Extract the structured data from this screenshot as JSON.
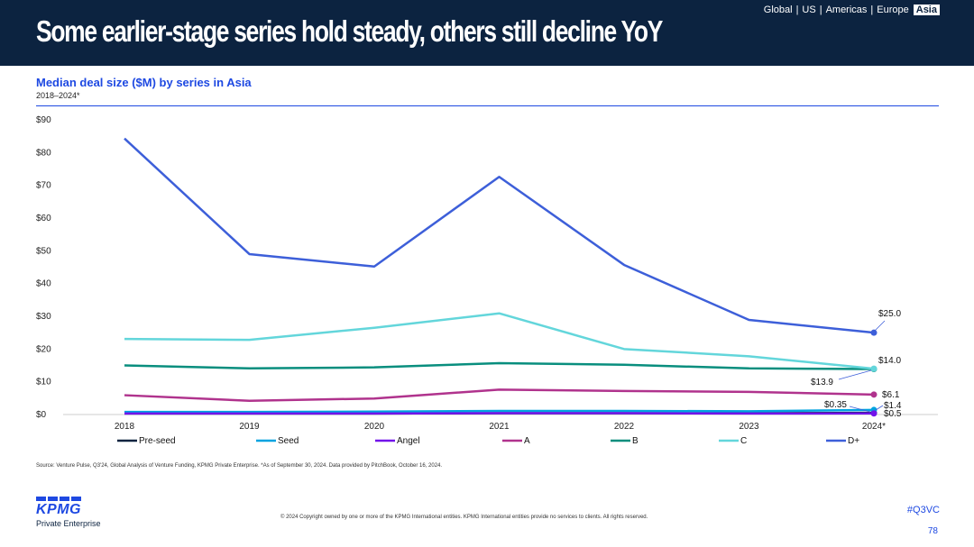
{
  "header": {
    "title": "Some earlier-stage series hold steady, others still decline YoY",
    "regions": [
      "Global",
      "US",
      "Americas",
      "Europe"
    ],
    "active_region": "Asia"
  },
  "chart_title": "Median deal size ($M) by series in Asia",
  "chart_subtitle": "2018–2024*",
  "chart_data": {
    "type": "line",
    "title": "Median deal size ($M) by series in Asia",
    "subtitle": "2018–2024*",
    "xlabel": "",
    "ylabel": "",
    "ylim": [
      0,
      90
    ],
    "y_ticks": [
      "$0",
      "$10",
      "$20",
      "$30",
      "$40",
      "$50",
      "$60",
      "$70",
      "$80",
      "$90"
    ],
    "categories": [
      "2018",
      "2019",
      "2020",
      "2021",
      "2022",
      "2023",
      "2024*"
    ],
    "legend_position": "bottom",
    "series": [
      {
        "name": "Pre-seed",
        "color": "#0c2340",
        "values": [
          0.3,
          0.3,
          0.3,
          0.4,
          0.4,
          0.4,
          0.5
        ]
      },
      {
        "name": "Seed",
        "color": "#00a3e0",
        "values": [
          0.8,
          0.8,
          0.9,
          1.1,
          1.1,
          1.0,
          1.4
        ]
      },
      {
        "name": "Angel",
        "color": "#7213ea",
        "values": [
          0.3,
          0.3,
          0.3,
          0.4,
          0.4,
          0.3,
          0.35
        ]
      },
      {
        "name": "A",
        "color": "#b0338d",
        "values": [
          5.9,
          4.2,
          4.9,
          7.6,
          7.2,
          6.9,
          6.1
        ]
      },
      {
        "name": "B",
        "color": "#098e7e",
        "values": [
          15.0,
          14.1,
          14.4,
          15.7,
          15.2,
          14.1,
          13.9
        ]
      },
      {
        "name": "C",
        "color": "#63d6db",
        "values": [
          23.1,
          22.8,
          26.5,
          30.9,
          20.0,
          17.8,
          14.0
        ]
      },
      {
        "name": "D+",
        "color": "#3d5fd9",
        "values": [
          84.3,
          49.0,
          45.2,
          72.6,
          45.7,
          28.9,
          25.0
        ]
      }
    ],
    "annotations": [
      {
        "series": "D+",
        "label": "$25.0"
      },
      {
        "series": "C",
        "label": "$14.0"
      },
      {
        "series": "B",
        "label": "$13.9"
      },
      {
        "series": "A",
        "label": "$6.1"
      },
      {
        "series": "Seed",
        "label": "$1.4"
      },
      {
        "series": "Pre-seed",
        "label": "$0.5"
      },
      {
        "series": "Angel",
        "label": "$0.35"
      }
    ]
  },
  "source": "Source: Venture Pulse, Q3'24, Global Analysis of Venture Funding, KPMG Private Enterprise. *As of September 30, 2024. Data provided by PitchBook, October 16, 2024.",
  "footer": {
    "logo_text": "KPMG",
    "logo_subtext": "Private Enterprise",
    "copyright": "© 2024 Copyright owned by one or more of the KPMG International entities. KPMG International entities provide no services to clients. All rights reserved.",
    "hashtag": "#Q3VC",
    "page_number": "78"
  }
}
